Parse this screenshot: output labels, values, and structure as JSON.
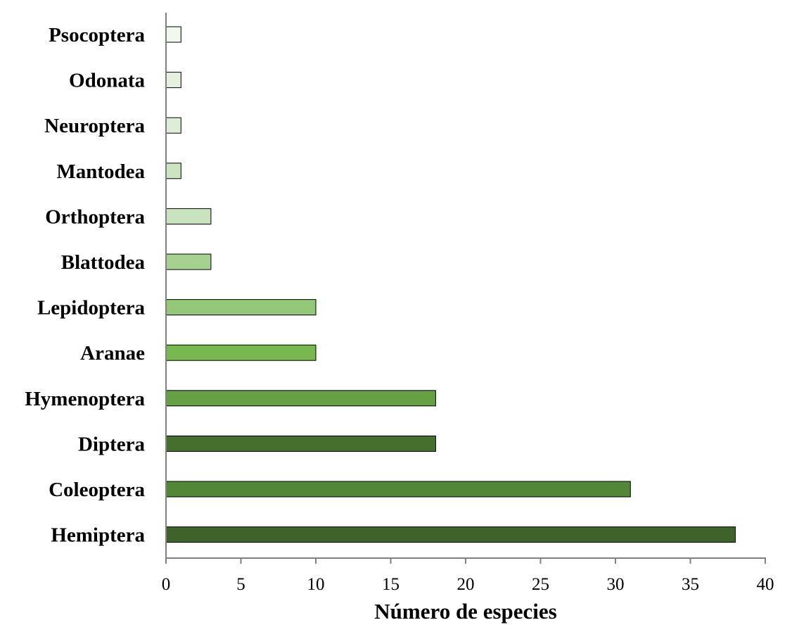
{
  "chart_data": {
    "type": "bar",
    "orientation": "horizontal",
    "categories": [
      "Psocoptera",
      "Odonata",
      "Neuroptera",
      "Mantodea",
      "Orthoptera",
      "Blattodea",
      "Lepidoptera",
      "Aranae",
      "Hymenoptera",
      "Diptera",
      "Coleoptera",
      "Hemiptera"
    ],
    "values": [
      1,
      1,
      1,
      1,
      3,
      3,
      10,
      10,
      18,
      18,
      31,
      38
    ],
    "colors": [
      "#f1f8ee",
      "#e3f1de",
      "#dcefd6",
      "#cae5c0",
      "#c8e3bd",
      "#a6d18f",
      "#92c877",
      "#77b94e",
      "#65a044",
      "#466f2d",
      "#538738",
      "#3f622a"
    ],
    "xlabel": "Número de especies",
    "ylabel": "",
    "title": "",
    "xlim": [
      0,
      40
    ],
    "xticks": [
      "0",
      "5",
      "10",
      "15",
      "20",
      "25",
      "30",
      "35",
      "40"
    ],
    "grid": false,
    "legend": "none"
  }
}
